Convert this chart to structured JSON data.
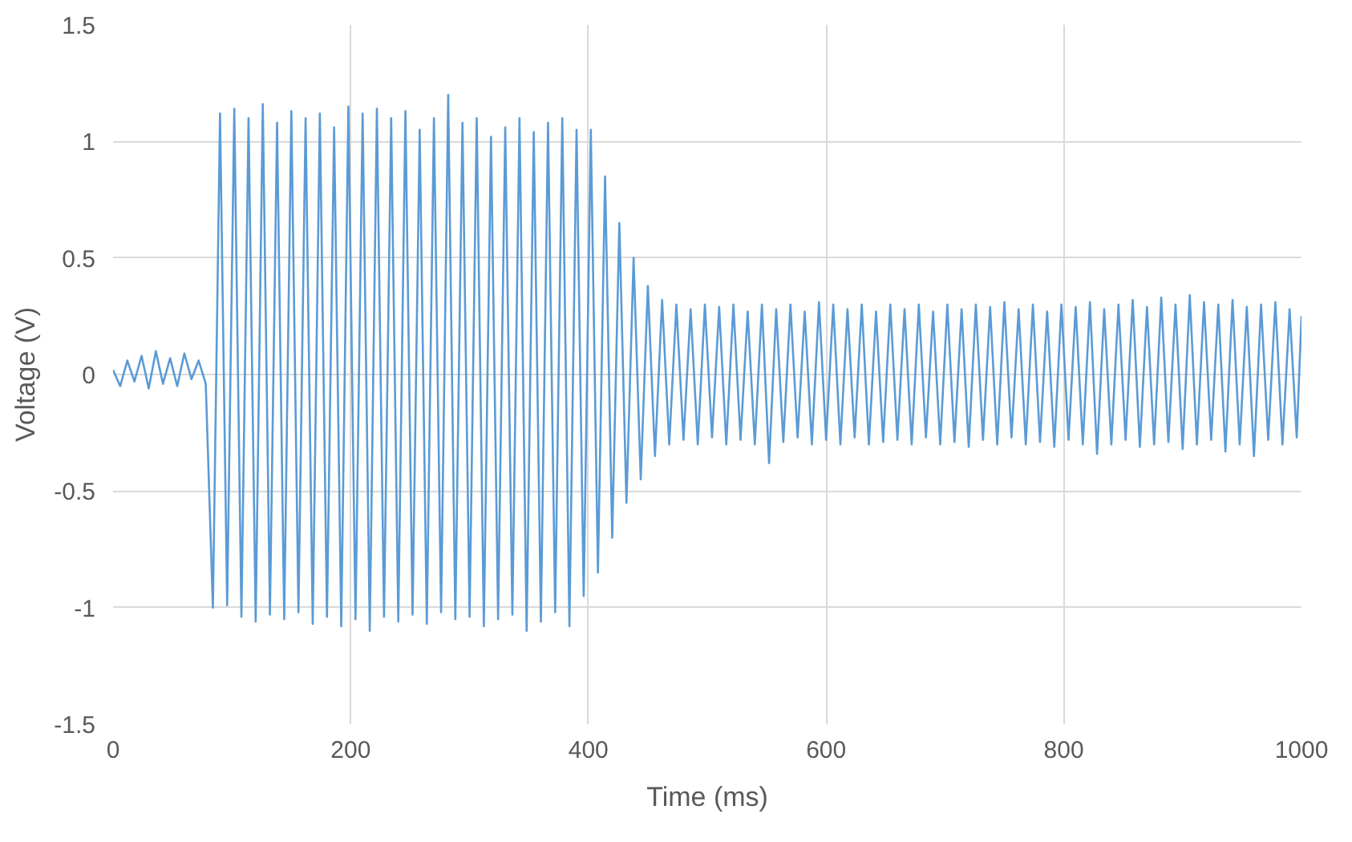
{
  "chart_data": {
    "type": "line",
    "xlabel": "Time (ms)",
    "ylabel": "Voltage (V)",
    "xlim": [
      0,
      1000
    ],
    "ylim": [
      -1.5,
      1.5
    ],
    "xticks": [
      0,
      200,
      400,
      600,
      800,
      1000
    ],
    "yticks": [
      -1.5,
      -1,
      -0.5,
      0,
      0.5,
      1,
      1.5
    ],
    "grid": true,
    "marker": "none",
    "line_style": "solid",
    "series": [
      {
        "color": "#5b9bd5",
        "x": [
          0,
          6,
          12,
          18,
          24,
          30,
          36,
          42,
          48,
          54,
          60,
          66,
          72,
          78,
          84,
          90,
          96,
          102,
          108,
          114,
          120,
          126,
          132,
          138,
          144,
          150,
          156,
          162,
          168,
          174,
          180,
          186,
          192,
          198,
          204,
          210,
          216,
          222,
          228,
          234,
          240,
          246,
          252,
          258,
          264,
          270,
          276,
          282,
          288,
          294,
          300,
          306,
          312,
          318,
          324,
          330,
          336,
          342,
          348,
          354,
          360,
          366,
          372,
          378,
          384,
          390,
          396,
          402,
          408,
          414,
          420,
          426,
          432,
          438,
          444,
          450,
          456,
          462,
          468,
          474,
          480,
          486,
          492,
          498,
          504,
          510,
          516,
          522,
          528,
          534,
          540,
          546,
          552,
          558,
          564,
          570,
          576,
          582,
          588,
          594,
          600,
          606,
          612,
          618,
          624,
          630,
          636,
          642,
          648,
          654,
          660,
          666,
          672,
          678,
          684,
          690,
          696,
          702,
          708,
          714,
          720,
          726,
          732,
          738,
          744,
          750,
          756,
          762,
          768,
          774,
          780,
          786,
          792,
          798,
          804,
          810,
          816,
          822,
          828,
          834,
          840,
          846,
          852,
          858,
          864,
          870,
          876,
          882,
          888,
          894,
          900,
          906,
          912,
          918,
          924,
          930,
          936,
          942,
          948,
          954,
          960,
          966,
          972,
          978,
          984,
          990,
          996,
          1000
        ],
        "values": [
          0.02,
          -0.05,
          0.06,
          -0.03,
          0.08,
          -0.06,
          0.1,
          -0.04,
          0.07,
          -0.05,
          0.09,
          -0.02,
          0.06,
          -0.04,
          -1.0,
          1.12,
          -0.99,
          1.14,
          -1.04,
          1.1,
          -1.06,
          1.16,
          -1.03,
          1.08,
          -1.05,
          1.13,
          -1.02,
          1.1,
          -1.07,
          1.12,
          -1.04,
          1.06,
          -1.08,
          1.15,
          -1.05,
          1.12,
          -1.1,
          1.14,
          -1.04,
          1.1,
          -1.06,
          1.13,
          -1.03,
          1.05,
          -1.07,
          1.1,
          -1.02,
          1.2,
          -1.05,
          1.08,
          -1.04,
          1.1,
          -1.08,
          1.02,
          -1.05,
          1.06,
          -1.03,
          1.1,
          -1.1,
          1.04,
          -1.06,
          1.08,
          -1.02,
          1.1,
          -1.08,
          1.05,
          -0.95,
          1.05,
          -0.85,
          0.85,
          -0.7,
          0.65,
          -0.55,
          0.5,
          -0.45,
          0.38,
          -0.35,
          0.32,
          -0.3,
          0.3,
          -0.28,
          0.28,
          -0.3,
          0.3,
          -0.27,
          0.29,
          -0.3,
          0.3,
          -0.28,
          0.27,
          -0.3,
          0.3,
          -0.38,
          0.28,
          -0.29,
          0.3,
          -0.27,
          0.27,
          -0.3,
          0.31,
          -0.28,
          0.3,
          -0.3,
          0.28,
          -0.27,
          0.3,
          -0.3,
          0.27,
          -0.29,
          0.3,
          -0.28,
          0.28,
          -0.3,
          0.3,
          -0.27,
          0.27,
          -0.3,
          0.3,
          -0.29,
          0.28,
          -0.31,
          0.3,
          -0.28,
          0.29,
          -0.3,
          0.31,
          -0.27,
          0.28,
          -0.3,
          0.3,
          -0.29,
          0.27,
          -0.31,
          0.3,
          -0.28,
          0.29,
          -0.3,
          0.31,
          -0.34,
          0.28,
          -0.3,
          0.3,
          -0.28,
          0.32,
          -0.31,
          0.29,
          -0.3,
          0.33,
          -0.29,
          0.3,
          -0.32,
          0.34,
          -0.3,
          0.31,
          -0.28,
          0.3,
          -0.33,
          0.32,
          -0.3,
          0.29,
          -0.35,
          0.3,
          -0.28,
          0.31,
          -0.3,
          0.28,
          -0.27,
          0.25
        ]
      }
    ]
  }
}
